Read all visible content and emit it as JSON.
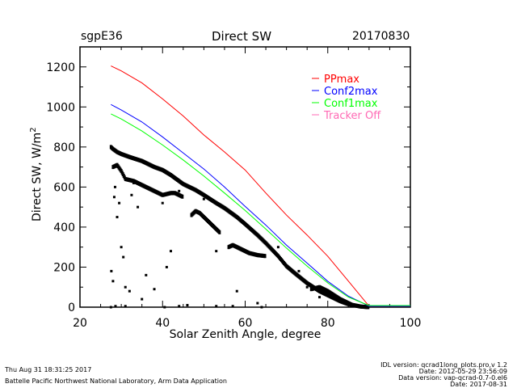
{
  "header": {
    "site": "sgpE36",
    "title": "Direct SW",
    "date": "20170830"
  },
  "footer": {
    "timestamp": "Thu Aug 31 18:31:25 2017",
    "institution": "Battelle Pacific Northwest National Laboratory, Arm Data Application",
    "idl_version": "IDL version: qcrad1long_plots.pro,v 1.2",
    "idl_date": "Date: 2012-05-29 23:56:09",
    "data_version": "Data version: vap-qcrad-0.7-0.el6",
    "data_date": "Date: 2017-08-31"
  },
  "chart_data": {
    "type": "scatter",
    "title": "Direct SW",
    "xlabel": "Solar Zenith Angle, degree",
    "ylabel": "Direct SW, W/m",
    "ylabel_sup": "2",
    "xlim": [
      20,
      100
    ],
    "ylim": [
      0,
      1300
    ],
    "xticks": [
      20,
      40,
      60,
      80,
      100
    ],
    "yticks": [
      0,
      200,
      400,
      600,
      800,
      1000,
      1200
    ],
    "grid": false,
    "legend_position": "top-right",
    "lines": [
      {
        "name": "PPmax",
        "color": "#ff0000",
        "points": [
          [
            27.5,
            1205
          ],
          [
            30,
            1180
          ],
          [
            35,
            1120
          ],
          [
            40,
            1040
          ],
          [
            45,
            955
          ],
          [
            50,
            860
          ],
          [
            55,
            775
          ],
          [
            60,
            685
          ],
          [
            65,
            570
          ],
          [
            70,
            460
          ],
          [
            75,
            360
          ],
          [
            80,
            254
          ],
          [
            85,
            130
          ],
          [
            90,
            5
          ],
          [
            100,
            5
          ]
        ]
      },
      {
        "name": "Conf2max",
        "color": "#0000ff",
        "points": [
          [
            27.5,
            1012
          ],
          [
            30,
            985
          ],
          [
            35,
            925
          ],
          [
            40,
            850
          ],
          [
            45,
            770
          ],
          [
            50,
            690
          ],
          [
            55,
            600
          ],
          [
            60,
            503
          ],
          [
            65,
            410
          ],
          [
            70,
            310
          ],
          [
            75,
            220
          ],
          [
            80,
            129
          ],
          [
            85,
            55
          ],
          [
            90,
            5
          ],
          [
            100,
            5
          ]
        ]
      },
      {
        "name": "Conf1max",
        "color": "#00ff00",
        "points": [
          [
            27.5,
            965
          ],
          [
            30,
            940
          ],
          [
            35,
            880
          ],
          [
            40,
            810
          ],
          [
            45,
            735
          ],
          [
            50,
            655
          ],
          [
            55,
            570
          ],
          [
            60,
            483
          ],
          [
            65,
            390
          ],
          [
            70,
            295
          ],
          [
            75,
            205
          ],
          [
            80,
            121
          ],
          [
            85,
            50
          ],
          [
            90,
            8
          ],
          [
            100,
            8
          ]
        ]
      },
      {
        "name": "Tracker Off",
        "color": "#ff69b4",
        "points": []
      }
    ],
    "observed": {
      "name": "Direct SW",
      "color": "#000000",
      "bands": [
        [
          [
            27.5,
            800
          ],
          [
            28,
            790
          ],
          [
            29,
            775
          ],
          [
            30,
            765
          ],
          [
            32,
            750
          ],
          [
            35,
            730
          ],
          [
            38,
            700
          ],
          [
            40,
            685
          ],
          [
            42,
            660
          ],
          [
            45,
            615
          ],
          [
            48,
            585
          ],
          [
            50,
            560
          ],
          [
            53,
            520
          ],
          [
            55,
            495
          ],
          [
            58,
            450
          ],
          [
            60,
            415
          ],
          [
            63,
            360
          ],
          [
            65,
            320
          ],
          [
            68,
            255
          ],
          [
            70,
            205
          ],
          [
            72,
            170
          ],
          [
            75,
            120
          ],
          [
            78,
            80
          ],
          [
            80,
            60
          ],
          [
            83,
            30
          ],
          [
            85,
            15
          ],
          [
            88,
            3
          ],
          [
            90,
            0
          ]
        ],
        [
          [
            28,
            700
          ],
          [
            29,
            710
          ],
          [
            30,
            680
          ],
          [
            31,
            640
          ],
          [
            33,
            630
          ],
          [
            35,
            610
          ],
          [
            37,
            590
          ],
          [
            40,
            560
          ],
          [
            42,
            570
          ],
          [
            43,
            570
          ],
          [
            45,
            550
          ]
        ],
        [
          [
            47,
            460
          ],
          [
            48,
            480
          ],
          [
            49,
            470
          ],
          [
            51,
            430
          ],
          [
            53,
            390
          ],
          [
            54,
            370
          ]
        ],
        [
          [
            56,
            300
          ],
          [
            57,
            310
          ],
          [
            59,
            290
          ],
          [
            61,
            270
          ],
          [
            63,
            260
          ],
          [
            65,
            255
          ]
        ],
        [
          [
            76,
            90
          ],
          [
            78,
            100
          ],
          [
            80,
            80
          ],
          [
            83,
            40
          ],
          [
            86,
            10
          ]
        ]
      ],
      "outliers": [
        [
          27.6,
          180
        ],
        [
          28,
          130
        ],
        [
          28.5,
          600
        ],
        [
          28.3,
          550
        ],
        [
          29,
          450
        ],
        [
          29.5,
          520
        ],
        [
          30,
          300
        ],
        [
          30.5,
          250
        ],
        [
          31,
          100
        ],
        [
          32,
          80
        ],
        [
          32.5,
          560
        ],
        [
          33,
          620
        ],
        [
          34,
          500
        ],
        [
          35,
          40
        ],
        [
          36,
          160
        ],
        [
          38,
          90
        ],
        [
          40,
          520
        ],
        [
          41,
          200
        ],
        [
          42,
          280
        ],
        [
          44,
          580
        ],
        [
          46,
          10
        ],
        [
          50,
          540
        ],
        [
          53,
          280
        ],
        [
          58,
          80
        ],
        [
          63,
          20
        ],
        [
          68,
          300
        ],
        [
          73,
          180
        ],
        [
          75,
          100
        ],
        [
          78,
          50
        ],
        [
          27.5,
          0
        ],
        [
          28.6,
          5
        ],
        [
          31,
          5
        ],
        [
          40.5,
          0
        ],
        [
          44,
          5
        ],
        [
          53,
          5
        ],
        [
          57,
          5
        ],
        [
          64,
          0
        ]
      ]
    }
  }
}
